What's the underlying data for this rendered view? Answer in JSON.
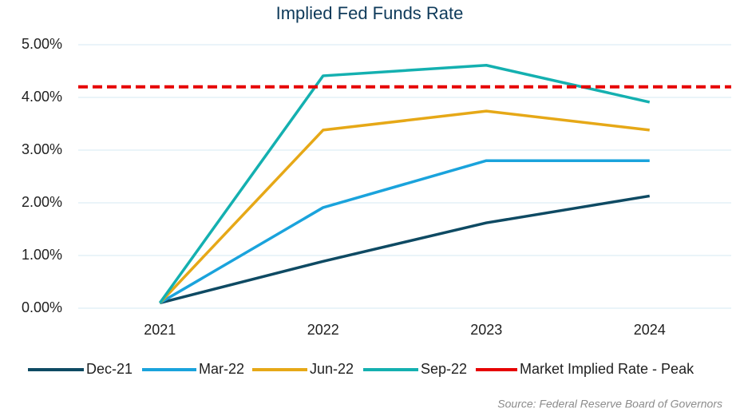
{
  "chart_data": {
    "type": "line",
    "title": "Implied Fed Funds Rate",
    "categories": [
      "2021",
      "2022",
      "2023",
      "2024"
    ],
    "series": [
      {
        "name": "Dec-21",
        "color": "#0e4a63",
        "values": [
          0.1,
          0.89,
          1.62,
          2.13
        ]
      },
      {
        "name": "Mar-22",
        "color": "#1aa3dc",
        "values": [
          0.1,
          1.91,
          2.8,
          2.8
        ]
      },
      {
        "name": "Jun-22",
        "color": "#e6a817",
        "values": [
          0.1,
          3.38,
          3.74,
          3.38
        ]
      },
      {
        "name": "Sep-22",
        "color": "#14b0b0",
        "values": [
          0.1,
          4.41,
          4.61,
          3.91
        ]
      }
    ],
    "hline": {
      "name": "Market Implied Rate - Peak",
      "color": "#e60000",
      "value": 4.2,
      "style": "dashed"
    },
    "ylim": [
      0,
      5
    ],
    "yticks": [
      {
        "value": 0,
        "label": "0.00%"
      },
      {
        "value": 1,
        "label": "1.00%"
      },
      {
        "value": 2,
        "label": "2.00%"
      },
      {
        "value": 3,
        "label": "3.00%"
      },
      {
        "value": 4,
        "label": "4.00%"
      },
      {
        "value": 5,
        "label": "5.00%"
      }
    ],
    "grid": true,
    "legend": "bottom",
    "source": "Source: Federal Reserve Board of Governors"
  }
}
